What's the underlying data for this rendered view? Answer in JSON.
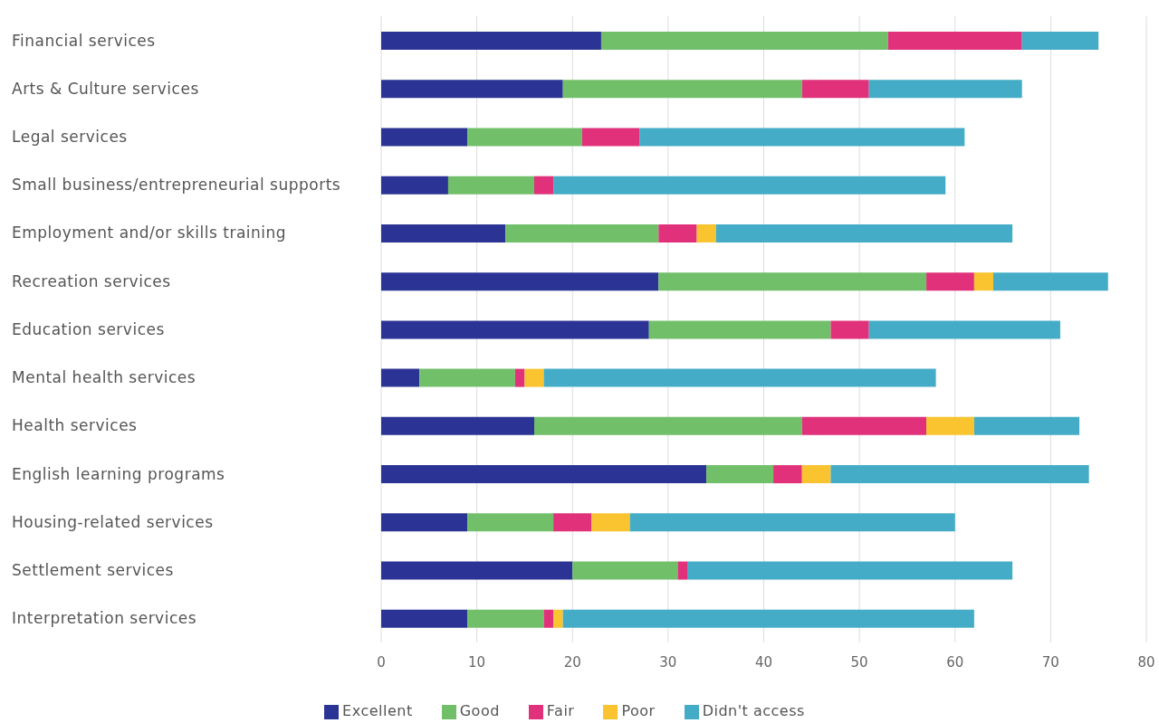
{
  "chart_data": {
    "type": "bar",
    "orientation": "horizontal",
    "stacked": true,
    "categories": [
      "Financial services",
      "Arts & Culture services",
      "Legal services",
      "Small business/entrepreneurial supports",
      "Employment and/or skills training",
      "Recreation services",
      "Education services",
      "Mental health services",
      "Health services",
      "English learning programs",
      "Housing-related services",
      "Settlement services",
      "Interpretation services"
    ],
    "series": [
      {
        "name": "Excellent",
        "color": "#2b3494",
        "values": [
          23,
          19,
          9,
          7,
          13,
          29,
          28,
          4,
          16,
          34,
          9,
          20,
          9
        ]
      },
      {
        "name": "Good",
        "color": "#72bf6a",
        "values": [
          30,
          25,
          12,
          9,
          16,
          28,
          19,
          10,
          28,
          7,
          9,
          11,
          8
        ]
      },
      {
        "name": "Fair",
        "color": "#e0317a",
        "values": [
          14,
          7,
          6,
          2,
          4,
          5,
          4,
          1,
          13,
          3,
          4,
          1,
          1
        ]
      },
      {
        "name": "Poor",
        "color": "#f9c430",
        "values": [
          0,
          0,
          0,
          0,
          2,
          2,
          0,
          2,
          5,
          3,
          4,
          0,
          1
        ]
      },
      {
        "name": "Didn't access",
        "color": "#44acc6",
        "values": [
          8,
          16,
          34,
          41,
          31,
          12,
          20,
          41,
          11,
          27,
          34,
          34,
          43
        ]
      }
    ],
    "xlim": [
      0,
      80
    ],
    "xticks": [
      0,
      10,
      20,
      30,
      40,
      50,
      60,
      70,
      80
    ],
    "grid": "x",
    "legend": "bottom"
  }
}
